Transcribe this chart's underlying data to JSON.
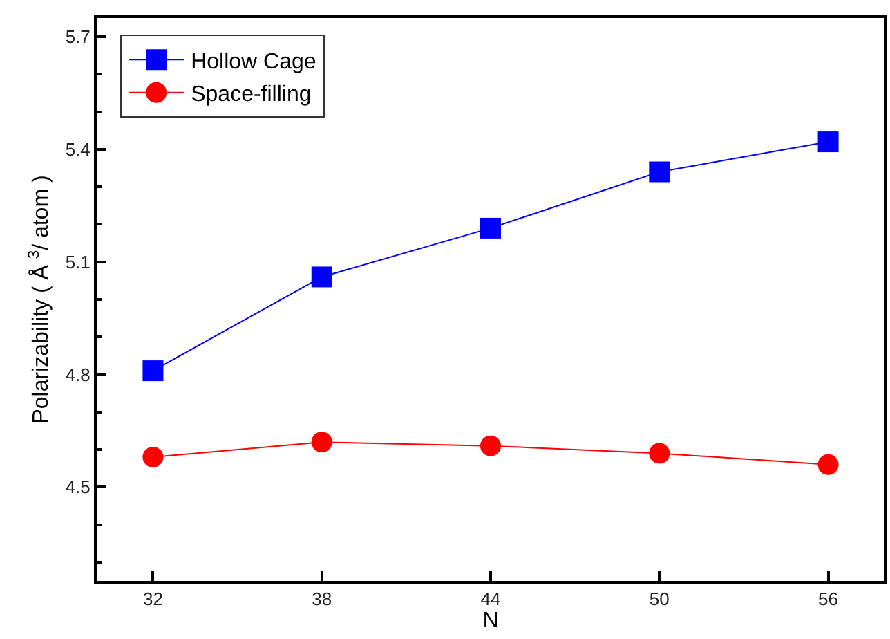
{
  "chart_data": {
    "type": "line",
    "xlabel": "N",
    "ylabel": "Polarizability ( Å $^{3}$/ atom )",
    "x": [
      32,
      38,
      44,
      50,
      56
    ],
    "series": [
      {
        "name": "Hollow Cage",
        "color": "#0000ff",
        "marker": "square",
        "values": [
          4.81,
          5.06,
          5.19,
          5.34,
          5.42
        ]
      },
      {
        "name": "Space-filling",
        "color": "#ff0000",
        "marker": "circle",
        "values": [
          4.58,
          4.62,
          4.61,
          4.59,
          4.56
        ]
      }
    ],
    "xlim": [
      30,
      58
    ],
    "xticks": [
      32,
      38,
      44,
      50,
      56
    ],
    "ylim": [
      4.25,
      5.75
    ],
    "yticks": [
      {
        "value": 4.3,
        "label": null
      },
      {
        "value": 4.4,
        "label": null
      },
      4.5,
      {
        "value": 4.6,
        "label": null
      },
      {
        "value": 4.7,
        "label": null
      },
      4.8,
      {
        "value": 4.9,
        "label": null
      },
      {
        "value": 5.0,
        "label": null
      },
      5.1,
      {
        "value": 5.2,
        "label": null
      },
      {
        "value": 5.3,
        "label": null
      },
      5.4,
      {
        "value": 5.5,
        "label": null
      },
      {
        "value": 5.6,
        "label": null
      },
      5.7
    ],
    "legend": "top left",
    "line_style": "solid"
  }
}
